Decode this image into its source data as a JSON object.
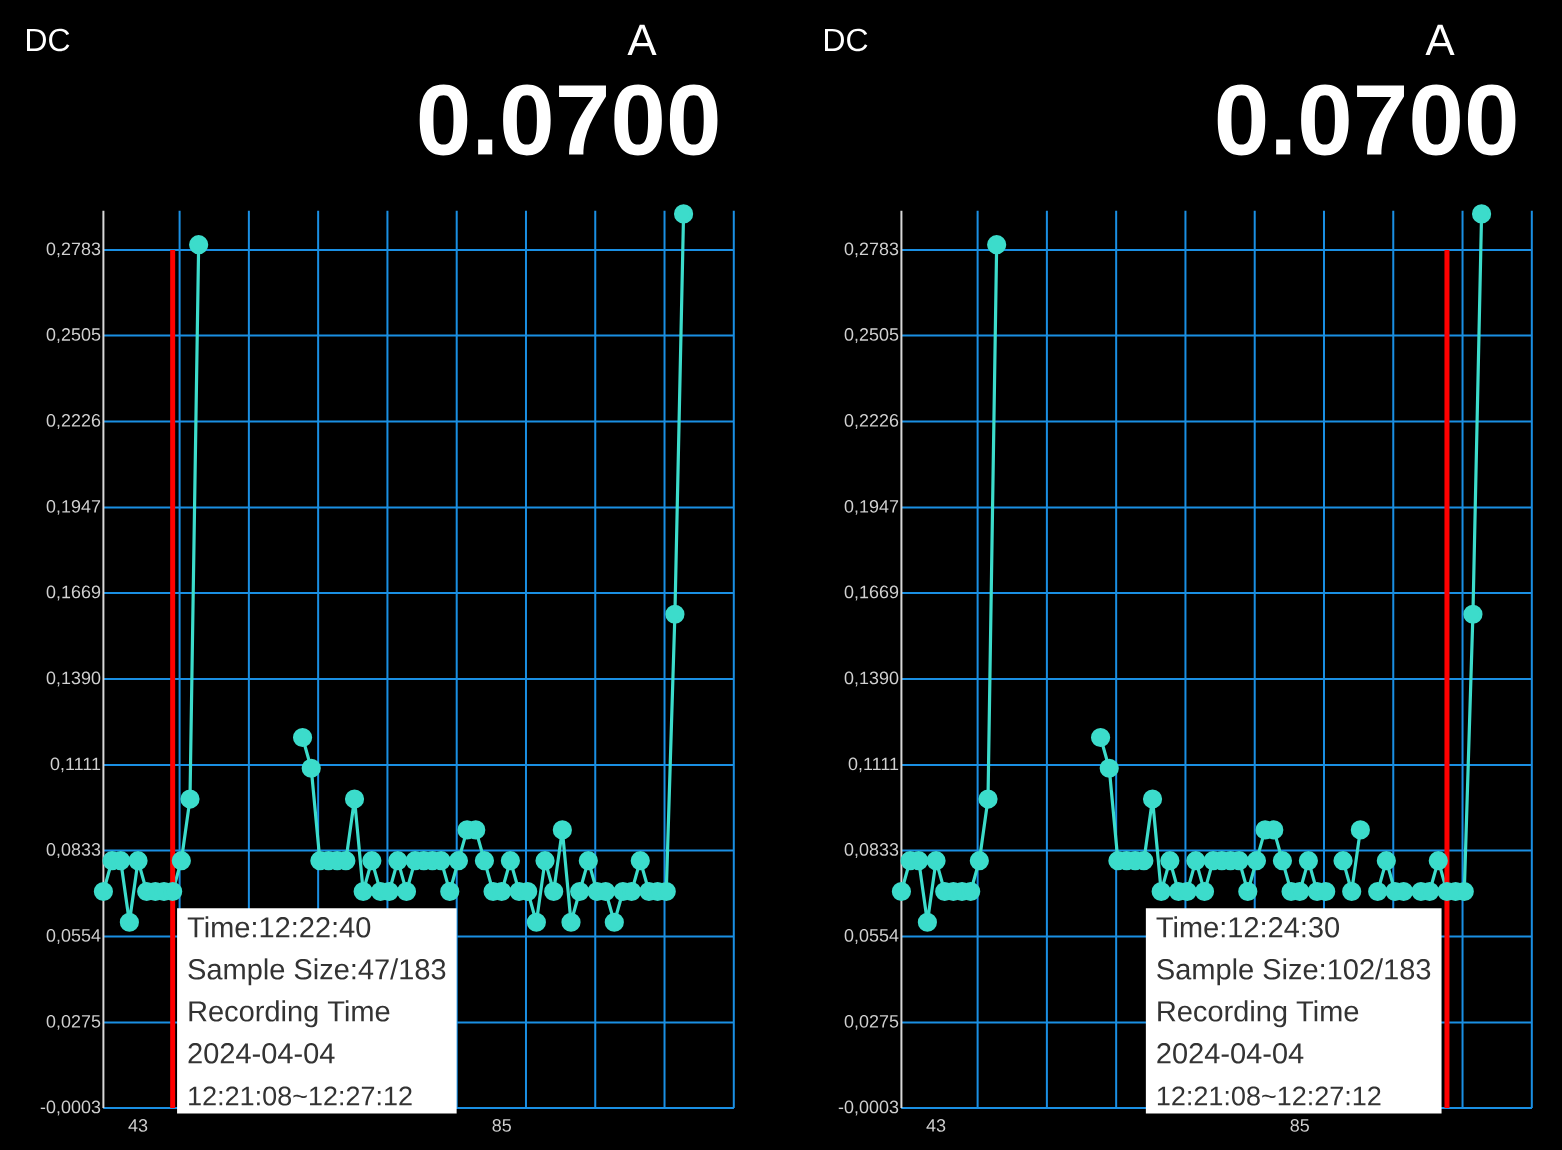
{
  "chart_data": [
    {
      "type": "line",
      "color": "#3cdccb",
      "marker": "circle",
      "grid": true,
      "x": [
        39,
        40,
        41,
        42,
        43,
        44,
        45,
        46,
        47,
        48,
        49,
        50,
        51,
        52,
        53,
        54,
        55,
        56,
        57,
        58,
        59,
        60,
        61,
        62,
        63,
        64,
        65,
        66,
        67,
        68,
        69,
        70,
        71,
        72,
        73,
        74,
        75,
        76,
        77,
        78,
        79,
        80,
        81,
        82,
        83,
        84,
        85,
        86,
        87,
        88,
        89,
        90,
        91,
        92,
        93,
        94,
        95,
        96,
        97,
        98,
        99,
        100,
        101,
        102,
        103,
        104,
        105,
        106
      ],
      "values": [
        0.07,
        0.08,
        0.08,
        0.06,
        0.08,
        0.07,
        0.07,
        0.07,
        0.07,
        0.08,
        0.1,
        0.28,
        null,
        null,
        null,
        null,
        null,
        null,
        null,
        null,
        null,
        null,
        null,
        0.12,
        0.11,
        0.08,
        0.08,
        0.08,
        0.08,
        0.1,
        0.07,
        0.08,
        0.07,
        0.07,
        0.08,
        0.07,
        0.08,
        0.08,
        0.08,
        0.08,
        0.07,
        0.08,
        0.09,
        0.09,
        0.08,
        0.07,
        0.07,
        0.08,
        0.07,
        0.07,
        0.06,
        0.08,
        0.07,
        0.09,
        0.06,
        0.07,
        0.08,
        0.07,
        0.07,
        0.06,
        0.07,
        0.07,
        0.08,
        0.07,
        0.07,
        0.07,
        0.16,
        0.29
      ],
      "xlim": [
        39,
        111.8
      ],
      "ylim": [
        -0.0003,
        0.291
      ],
      "xticks": [
        43,
        85,
        {
          "value": 47.8,
          "label": null
        },
        {
          "value": 55.8,
          "label": null
        },
        {
          "value": 63.8,
          "label": null
        },
        {
          "value": 71.8,
          "label": null
        },
        {
          "value": 79.8,
          "label": null
        },
        {
          "value": 87.8,
          "label": null
        },
        {
          "value": 95.8,
          "label": null
        },
        {
          "value": 103.8,
          "label": null
        },
        {
          "value": 111.8,
          "label": null
        }
      ],
      "yticks": [
        {
          "value": -0.0003,
          "label": "-0,0003"
        },
        {
          "value": 0.0275,
          "label": "0,0275"
        },
        {
          "value": 0.0554,
          "label": "0,0554"
        },
        {
          "value": 0.0833,
          "label": "0,0833"
        },
        {
          "value": 0.1111,
          "label": "0,1111"
        },
        {
          "value": 0.139,
          "label": "0,1390"
        },
        {
          "value": 0.1669,
          "label": "0,1669"
        },
        {
          "value": 0.1947,
          "label": "0,1947"
        },
        {
          "value": 0.2226,
          "label": "0,2226"
        },
        {
          "value": 0.2505,
          "label": "0,2505"
        },
        {
          "value": 0.2783,
          "label": "0,2783"
        }
      ],
      "ref_lines": [
        {
          "axis": "x",
          "value": 47,
          "color": "#ff0000"
        }
      ],
      "annotations": [
        "DC",
        "A",
        "0.0700",
        "Time:12:22:40",
        "Sample Size:47/183",
        "Recording Time",
        "2024-04-04",
        "12:21:08~12:27:12"
      ]
    },
    {
      "type": "line",
      "color": "#3cdccb",
      "marker": "circle",
      "grid": true,
      "x": [
        39,
        40,
        41,
        42,
        43,
        44,
        45,
        46,
        47,
        48,
        49,
        50,
        51,
        52,
        53,
        54,
        55,
        56,
        57,
        58,
        59,
        60,
        61,
        62,
        63,
        64,
        65,
        66,
        67,
        68,
        69,
        70,
        71,
        72,
        73,
        74,
        75,
        76,
        77,
        78,
        79,
        80,
        81,
        82,
        83,
        84,
        85,
        86,
        87,
        88,
        89,
        90,
        91,
        92,
        93,
        94,
        95,
        96,
        97,
        98,
        99,
        100,
        101,
        102,
        103,
        104,
        105,
        106
      ],
      "values": [
        0.07,
        0.08,
        0.08,
        0.06,
        0.08,
        0.07,
        0.07,
        0.07,
        0.07,
        0.08,
        0.1,
        0.28,
        null,
        null,
        null,
        null,
        null,
        null,
        null,
        null,
        null,
        null,
        null,
        0.12,
        0.11,
        0.08,
        0.08,
        0.08,
        0.08,
        0.1,
        0.07,
        0.08,
        0.07,
        0.07,
        0.08,
        0.07,
        0.08,
        0.08,
        0.08,
        0.08,
        0.07,
        0.08,
        0.09,
        0.09,
        0.08,
        0.07,
        0.07,
        0.08,
        0.07,
        0.07,
        null,
        0.08,
        0.07,
        0.09,
        null,
        0.07,
        0.08,
        0.07,
        0.07,
        null,
        0.07,
        0.07,
        0.08,
        0.07,
        0.07,
        0.07,
        0.16,
        0.29
      ],
      "xlim": [
        39,
        111.8
      ],
      "ylim": [
        -0.0003,
        0.291
      ],
      "xticks": [
        43,
        85,
        {
          "value": 47.8,
          "label": null
        },
        {
          "value": 55.8,
          "label": null
        },
        {
          "value": 63.8,
          "label": null
        },
        {
          "value": 71.8,
          "label": null
        },
        {
          "value": 79.8,
          "label": null
        },
        {
          "value": 87.8,
          "label": null
        },
        {
          "value": 95.8,
          "label": null
        },
        {
          "value": 103.8,
          "label": null
        },
        {
          "value": 111.8,
          "label": null
        }
      ],
      "yticks": [
        {
          "value": -0.0003,
          "label": "-0,0003"
        },
        {
          "value": 0.0275,
          "label": "0,0275"
        },
        {
          "value": 0.0554,
          "label": "0,0554"
        },
        {
          "value": 0.0833,
          "label": "0,0833"
        },
        {
          "value": 0.1111,
          "label": "0,1111"
        },
        {
          "value": 0.139,
          "label": "0,1390"
        },
        {
          "value": 0.1669,
          "label": "0,1669"
        },
        {
          "value": 0.1947,
          "label": "0,1947"
        },
        {
          "value": 0.2226,
          "label": "0,2226"
        },
        {
          "value": 0.2505,
          "label": "0,2505"
        },
        {
          "value": 0.2783,
          "label": "0,2783"
        }
      ],
      "ref_lines": [
        {
          "axis": "x",
          "value": 102,
          "color": "#ff0000"
        }
      ],
      "annotations": [
        "DC",
        "A",
        "0.0700",
        "Time:12:24:30",
        "Sample Size:102/183",
        "Recording Time",
        "2024-04-04",
        "12:21:08~12:27:12"
      ]
    }
  ]
}
